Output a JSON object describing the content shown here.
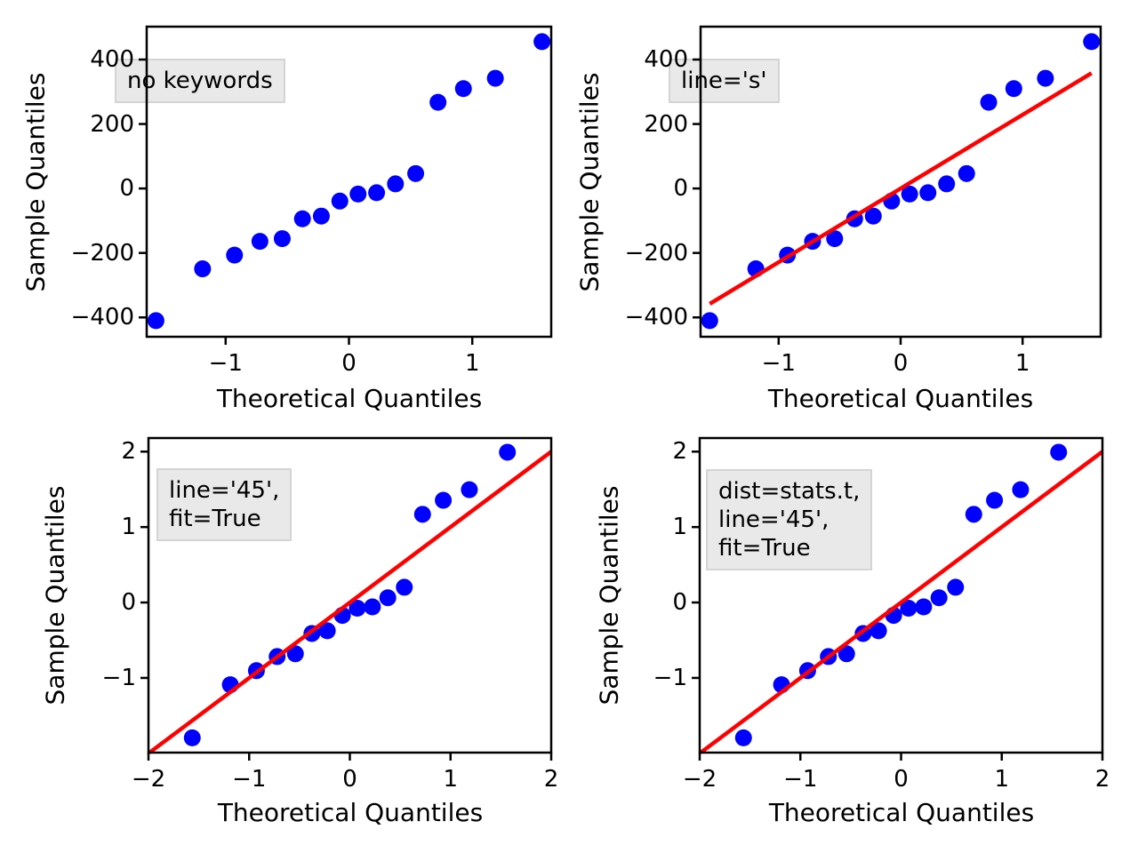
{
  "figure": {
    "background": "#ffffff",
    "marker_color": "#0000ff",
    "ref_line_color": "#ff0000",
    "axis_color": "#000000",
    "annotation_bg": "#e9e9e9",
    "annotation_border": "#d4d4d4"
  },
  "chart_data": [
    {
      "type": "scatter",
      "title_annotation": "no keywords",
      "xlabel": "Theoretical Quantiles",
      "ylabel": "Sample Quantiles",
      "xlim": [
        -1.64,
        1.64
      ],
      "ylim": [
        -460,
        502
      ],
      "xticks": [
        -1,
        0,
        1
      ],
      "yticks": [
        -400,
        -200,
        0,
        200,
        400
      ],
      "x": [
        -1.565,
        -1.187,
        -0.928,
        -0.722,
        -0.541,
        -0.377,
        -0.224,
        -0.074,
        0.074,
        0.224,
        0.377,
        0.541,
        0.722,
        0.928,
        1.187,
        1.565
      ],
      "y": [
        -410.1,
        -249.3,
        -206.8,
        -164.0,
        -155.6,
        -94.0,
        -85.7,
        -39.1,
        -17.3,
        -13.2,
        14.3,
        46.3,
        267.3,
        309.7,
        341.9,
        455.4
      ],
      "ref_line": null
    },
    {
      "type": "scatter",
      "title_annotation": "line='s'",
      "xlabel": "Theoretical Quantiles",
      "ylabel": "Sample Quantiles",
      "xlim": [
        -1.64,
        1.64
      ],
      "ylim": [
        -460,
        502
      ],
      "xticks": [
        -1,
        0,
        1
      ],
      "yticks": [
        -400,
        -200,
        0,
        200,
        400
      ],
      "x": [
        -1.565,
        -1.187,
        -0.928,
        -0.722,
        -0.541,
        -0.377,
        -0.224,
        -0.074,
        0.074,
        0.224,
        0.377,
        0.541,
        0.722,
        0.928,
        1.187,
        1.565
      ],
      "y": [
        -410.1,
        -249.3,
        -206.8,
        -164.0,
        -155.6,
        -94.0,
        -85.7,
        -39.1,
        -17.3,
        -13.2,
        14.3,
        46.3,
        267.3,
        309.7,
        341.9,
        455.4
      ],
      "ref_line": {
        "kind": "s",
        "x1": -1.565,
        "y1": -357.8,
        "x2": 1.565,
        "y2": 357.8
      }
    },
    {
      "type": "scatter",
      "title_annotation": "line='45',\nfit=True",
      "xlabel": "Theoretical Quantiles",
      "ylabel": "Sample Quantiles",
      "xlim": [
        -2,
        2
      ],
      "ylim": [
        -1.99,
        2.18
      ],
      "xticks": [
        -2,
        -1,
        0,
        1,
        2
      ],
      "yticks": [
        -1,
        0,
        1,
        2
      ],
      "x": [
        -1.565,
        -1.187,
        -0.928,
        -0.722,
        -0.541,
        -0.377,
        -0.224,
        -0.074,
        0.074,
        0.224,
        0.377,
        0.541,
        0.722,
        0.928,
        1.187,
        1.565
      ],
      "y": [
        -1.794,
        -1.09,
        -0.904,
        -0.717,
        -0.68,
        -0.411,
        -0.375,
        -0.171,
        -0.076,
        -0.058,
        0.063,
        0.202,
        1.169,
        1.355,
        1.495,
        1.992
      ],
      "ref_line": {
        "kind": "45",
        "x1": -1.99,
        "y1": -1.99,
        "x2": 2.0,
        "y2": 2.0
      }
    },
    {
      "type": "scatter",
      "title_annotation": "dist=stats.t,\nline='45',\nfit=True",
      "xlabel": "Theoretical Quantiles",
      "ylabel": "Sample Quantiles",
      "xlim": [
        -2,
        2
      ],
      "ylim": [
        -1.99,
        2.18
      ],
      "xticks": [
        -2,
        -1,
        0,
        1,
        2
      ],
      "yticks": [
        -1,
        0,
        1,
        2
      ],
      "x": [
        -1.565,
        -1.187,
        -0.928,
        -0.722,
        -0.541,
        -0.377,
        -0.224,
        -0.074,
        0.074,
        0.224,
        0.377,
        0.541,
        0.722,
        0.928,
        1.187,
        1.565
      ],
      "y": [
        -1.794,
        -1.09,
        -0.904,
        -0.717,
        -0.68,
        -0.411,
        -0.375,
        -0.171,
        -0.076,
        -0.058,
        0.063,
        0.202,
        1.169,
        1.355,
        1.495,
        1.992
      ],
      "ref_line": {
        "kind": "45",
        "x1": -1.99,
        "y1": -1.99,
        "x2": 2.0,
        "y2": 2.0
      }
    }
  ]
}
